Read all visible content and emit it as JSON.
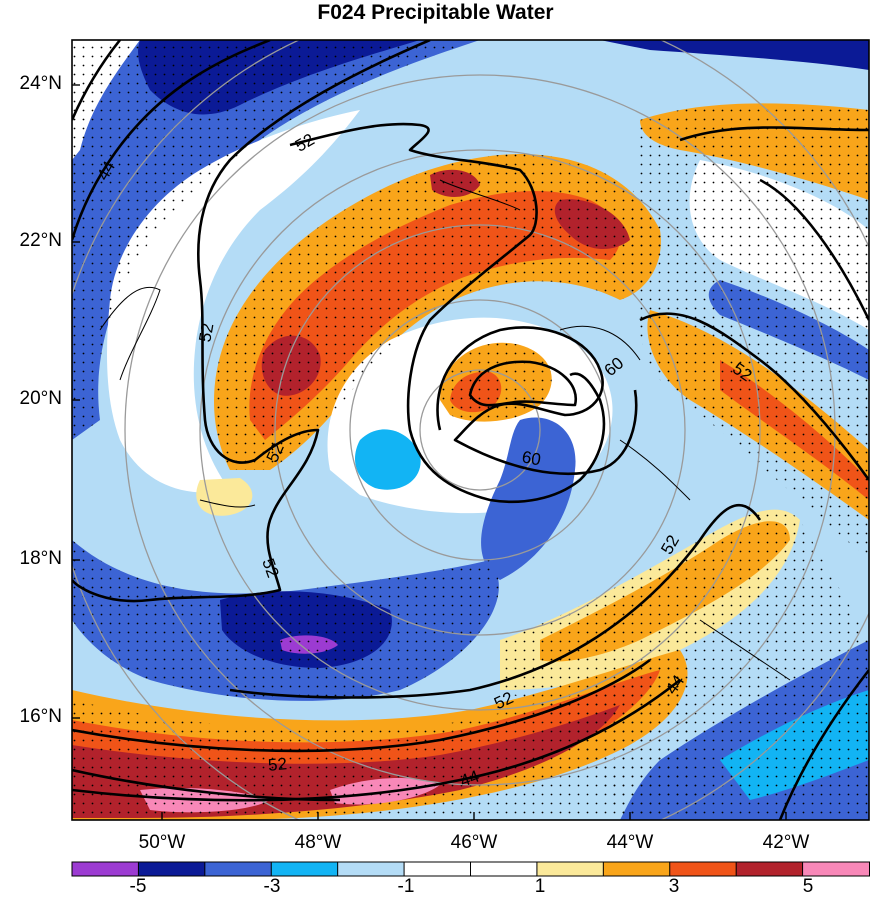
{
  "title": "F024 Precipitable Water",
  "lat_labels": [
    "24°N",
    "22°N",
    "20°N",
    "18°N",
    "16°N"
  ],
  "lon_labels": [
    "50°W",
    "48°W",
    "46°W",
    "44°W",
    "42°W"
  ],
  "colorbar": {
    "labels": [
      "-5",
      "-3",
      "-1",
      "1",
      "3",
      "5"
    ],
    "colors": [
      "#9c3bd2",
      "#0b1a96",
      "#3c64d4",
      "#12b4f4",
      "#b4dcf6",
      "#ffffff",
      "#ffffff",
      "#fbe99a",
      "#f9a51a",
      "#f05418",
      "#b2222c",
      "#f888b8"
    ]
  },
  "palette": {
    "neg5": "#9c3bd2",
    "neg4": "#0b1a96",
    "neg3": "#3c64d4",
    "neg2": "#12b4f4",
    "neg1": "#b4dcf6",
    "zero": "#ffffff",
    "pos1": "#fbe99a",
    "pos2": "#f9a51a",
    "pos3": "#f05418",
    "pos4": "#b2222c",
    "pos5": "#f888b8"
  },
  "contour_labels": {
    "c44_nw": "44",
    "c52_n": "52",
    "c52_w": "52",
    "c52_sw1": "52",
    "c52_sw2": "52",
    "c60_a": "60",
    "c60_b": "60",
    "c52_e": "52",
    "c52_se": "52",
    "c52_s1": "52",
    "c52_s2": "52",
    "c44_s": "44",
    "c44_se": "44"
  }
}
